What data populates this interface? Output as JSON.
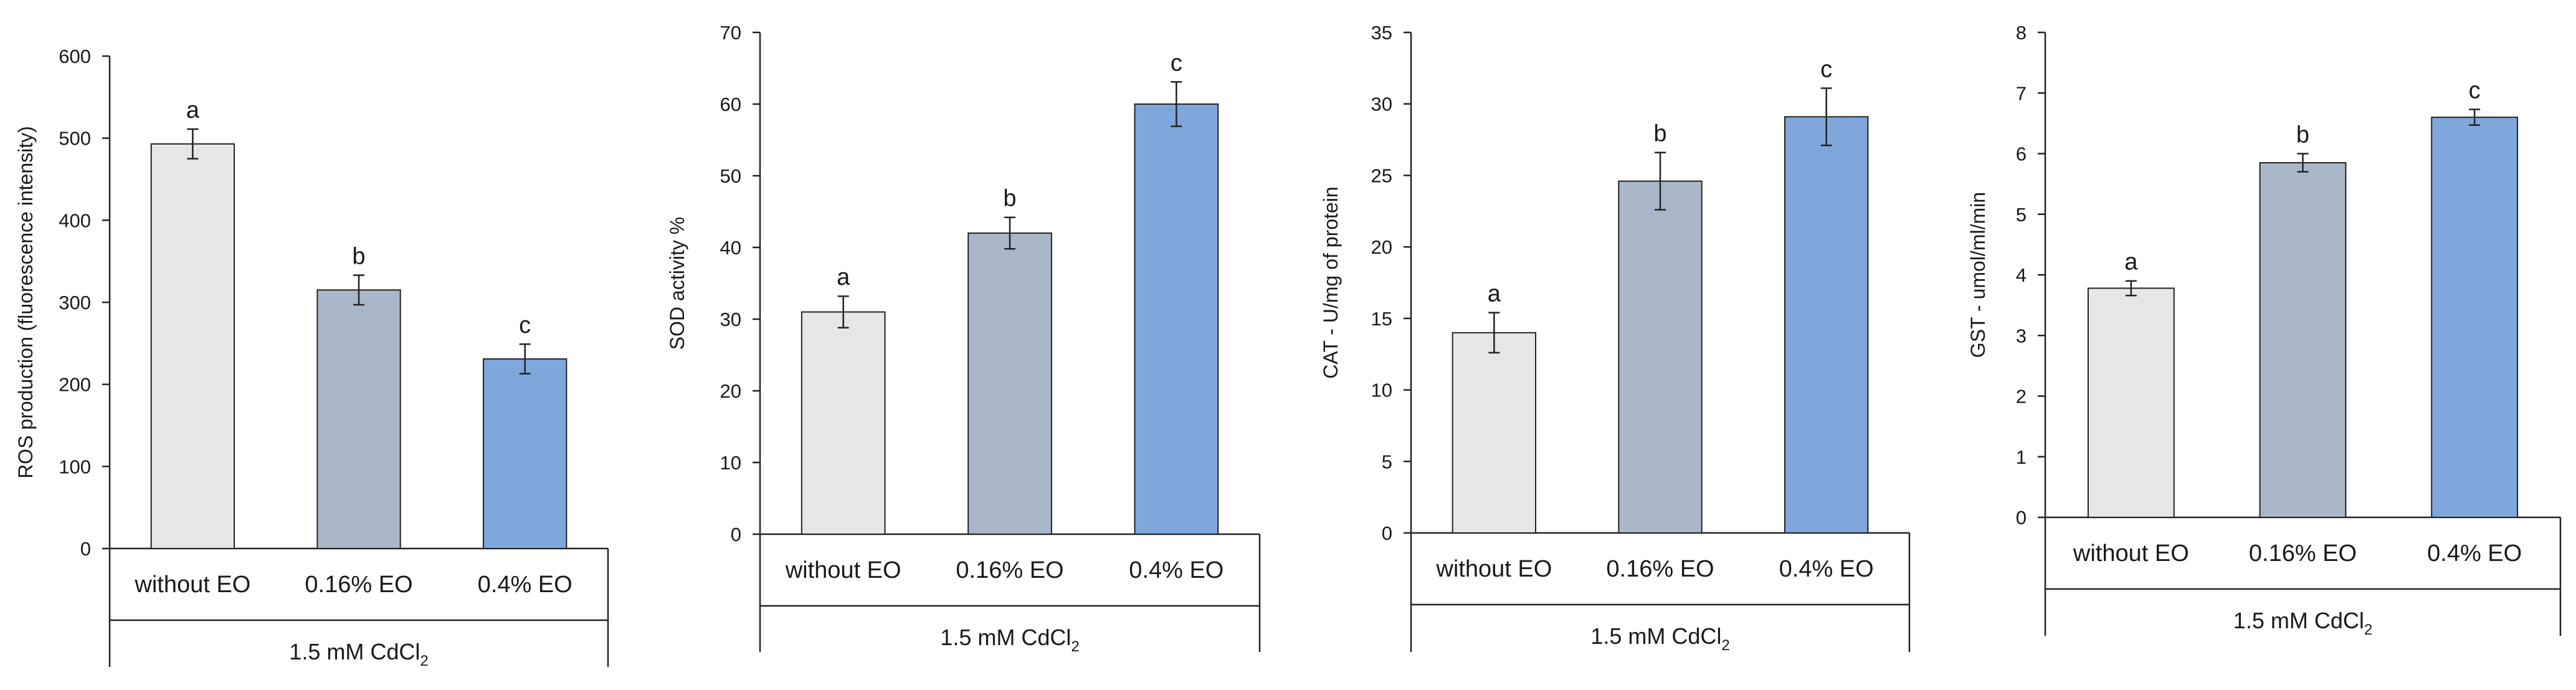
{
  "chart_data": [
    {
      "type": "bar",
      "ylabel": "ROS production (fluorescence intensity)",
      "group_label": "1.5 mM CdCl",
      "group_label_sub": "2",
      "categories": [
        "without EO",
        "0.16% EO",
        "0.4% EO"
      ],
      "values": [
        493,
        315,
        231
      ],
      "errors": [
        18,
        18,
        18
      ],
      "letters": [
        "a",
        "b",
        "c"
      ],
      "ylim": [
        0,
        600
      ],
      "yticks": [
        0,
        100,
        200,
        300,
        400,
        500,
        600
      ],
      "colors": [
        "#e6e6e6",
        "#a9b8c8",
        "#7fa7dc"
      ]
    },
    {
      "type": "bar",
      "ylabel": "SOD activity %",
      "group_label": "1.5 mM CdCl",
      "group_label_sub": "2",
      "categories": [
        "without EO",
        "0.16% EO",
        "0.4% EO"
      ],
      "values": [
        31,
        42,
        60
      ],
      "errors": [
        2.2,
        2.2,
        3.1
      ],
      "letters": [
        "a",
        "b",
        "c"
      ],
      "ylim": [
        0,
        70
      ],
      "yticks": [
        0,
        10,
        20,
        30,
        40,
        50,
        60,
        70
      ],
      "colors": [
        "#e6e6e6",
        "#a9b8c8",
        "#7fa7dc"
      ]
    },
    {
      "type": "bar",
      "ylabel": "CAT - U/mg of protein",
      "group_label": "1.5 mM CdCl",
      "group_label_sub": "2",
      "categories": [
        "without EO",
        "0.16% EO",
        "0.4% EO"
      ],
      "values": [
        14,
        24.6,
        29.1
      ],
      "errors": [
        1.4,
        2.0,
        2.0
      ],
      "letters": [
        "a",
        "b",
        "c"
      ],
      "ylim": [
        0,
        35
      ],
      "yticks": [
        0,
        5,
        10,
        15,
        20,
        25,
        30,
        35
      ],
      "colors": [
        "#e6e6e6",
        "#a9b8c8",
        "#7fa7dc"
      ]
    },
    {
      "type": "bar",
      "ylabel": "GST - umol/ml/min",
      "group_label": "1.5 mM CdCl",
      "group_label_sub": "2",
      "categories": [
        "without EO",
        "0.16% EO",
        "0.4% EO"
      ],
      "values": [
        3.78,
        5.85,
        6.6
      ],
      "errors": [
        0.12,
        0.15,
        0.13
      ],
      "letters": [
        "a",
        "b",
        "c"
      ],
      "ylim": [
        0,
        8
      ],
      "yticks": [
        0,
        1,
        2,
        3,
        4,
        5,
        6,
        7,
        8
      ],
      "colors": [
        "#e6e6e6",
        "#a9b8c8",
        "#7fa7dc"
      ]
    }
  ]
}
